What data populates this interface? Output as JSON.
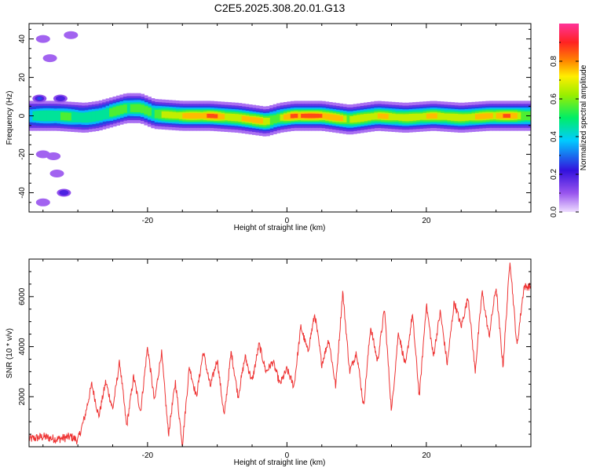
{
  "title": "C2E5.2025.308.20.01.G13",
  "colors": {
    "snr_line": "#ee3333",
    "axis": "#000000",
    "background": "#ffffff"
  },
  "chart_data": [
    {
      "type": "heatmap",
      "xlabel": "Height of straight line (km)",
      "ylabel": "Frequency (Hz)",
      "xlim": [
        -37,
        35
      ],
      "ylim": [
        -50,
        48
      ],
      "xticks": [
        -20,
        0,
        20
      ],
      "yticks": [
        -40,
        -20,
        0,
        20,
        40
      ],
      "colorbar": {
        "label": "Normalized spectral amplitude",
        "range": [
          0.0,
          1.0
        ],
        "ticks": [
          "0.0",
          "0.2",
          "0.4",
          "0.6",
          "0.8"
        ],
        "tick_values": [
          0.0,
          0.2,
          0.4,
          0.6,
          0.8
        ],
        "stops": [
          "#eeddff",
          "#9955ee",
          "#3311dd",
          "#00ccff",
          "#00ee66",
          "#99ee00",
          "#ffee00",
          "#ff8800",
          "#ff2222",
          "#ff3399"
        ]
      },
      "ridge": {
        "x": [
          -37,
          -33,
          -29,
          -27,
          -25,
          -23,
          -21,
          -19,
          -15,
          -11,
          -7,
          -5,
          -3,
          -1,
          1,
          5,
          9,
          13,
          17,
          21,
          25,
          29,
          33,
          34
        ],
        "freq": [
          0,
          0,
          -1,
          0,
          2,
          4,
          4,
          1,
          0,
          0,
          -1,
          -2,
          -3,
          -1,
          0,
          0,
          -2,
          0,
          -1,
          0,
          -1,
          0,
          0,
          0
        ],
        "amplitude": [
          0.45,
          0.55,
          0.5,
          0.5,
          0.6,
          0.6,
          0.55,
          0.6,
          0.75,
          0.9,
          0.7,
          0.85,
          0.7,
          0.6,
          0.95,
          0.9,
          0.7,
          0.75,
          0.7,
          0.75,
          0.7,
          0.8,
          0.85,
          0.6
        ]
      },
      "blobs": [
        {
          "x": -35.5,
          "freq": 9,
          "amplitude": 0.25
        },
        {
          "x": -32.5,
          "freq": 9,
          "amplitude": 0.2
        },
        {
          "x": -32,
          "freq": -40,
          "amplitude": 0.2
        },
        {
          "x": -35,
          "freq": 40,
          "amplitude": 0.08
        },
        {
          "x": -31,
          "freq": 42,
          "amplitude": 0.06
        },
        {
          "x": -33.5,
          "freq": -21,
          "amplitude": 0.06
        },
        {
          "x": -35,
          "freq": -20,
          "amplitude": 0.05
        },
        {
          "x": -33,
          "freq": -30,
          "amplitude": 0.05
        },
        {
          "x": -34,
          "freq": 30,
          "amplitude": 0.05
        },
        {
          "x": -35,
          "freq": -45,
          "amplitude": 0.05
        }
      ]
    },
    {
      "type": "line",
      "xlabel": "Height of straight line (km)",
      "ylabel": "SNR (10 * v/v)",
      "xlim": [
        -37,
        35
      ],
      "ylim": [
        0,
        7500
      ],
      "xticks": [
        -20,
        0,
        20
      ],
      "yticks": [
        2000,
        4000,
        6000
      ],
      "series": [
        {
          "name": "SNR",
          "x": [
            -37,
            -35,
            -33,
            -31,
            -30,
            -29,
            -28,
            -27,
            -26,
            -25,
            -24,
            -23,
            -22,
            -21,
            -20,
            -19,
            -18,
            -17,
            -16,
            -15,
            -14,
            -13,
            -12,
            -11,
            -10,
            -9,
            -8,
            -7,
            -6,
            -5,
            -4,
            -3,
            -2,
            -1,
            0,
            1,
            2,
            3,
            4,
            5,
            6,
            7,
            8,
            9,
            10,
            11,
            12,
            13,
            14,
            15,
            16,
            17,
            18,
            19,
            20,
            21,
            22,
            23,
            24,
            25,
            26,
            27,
            28,
            29,
            30,
            31,
            32,
            33,
            34
          ],
          "y": [
            300,
            400,
            300,
            400,
            250,
            1200,
            2500,
            1200,
            2600,
            1500,
            3400,
            800,
            2800,
            1400,
            4000,
            1800,
            3800,
            500,
            2600,
            100,
            3200,
            2000,
            3800,
            2400,
            3500,
            1200,
            3800,
            2000,
            3600,
            2600,
            4100,
            3000,
            3400,
            2500,
            3100,
            2400,
            4800,
            3800,
            5300,
            3300,
            4300,
            2400,
            6200,
            3000,
            3800,
            1600,
            4800,
            3400,
            5500,
            1400,
            4600,
            3200,
            5300,
            2000,
            5700,
            3600,
            5400,
            3300,
            5800,
            4800,
            6000,
            3000,
            6200,
            4400,
            6400,
            3200,
            7500,
            4000,
            6400
          ]
        }
      ]
    }
  ]
}
